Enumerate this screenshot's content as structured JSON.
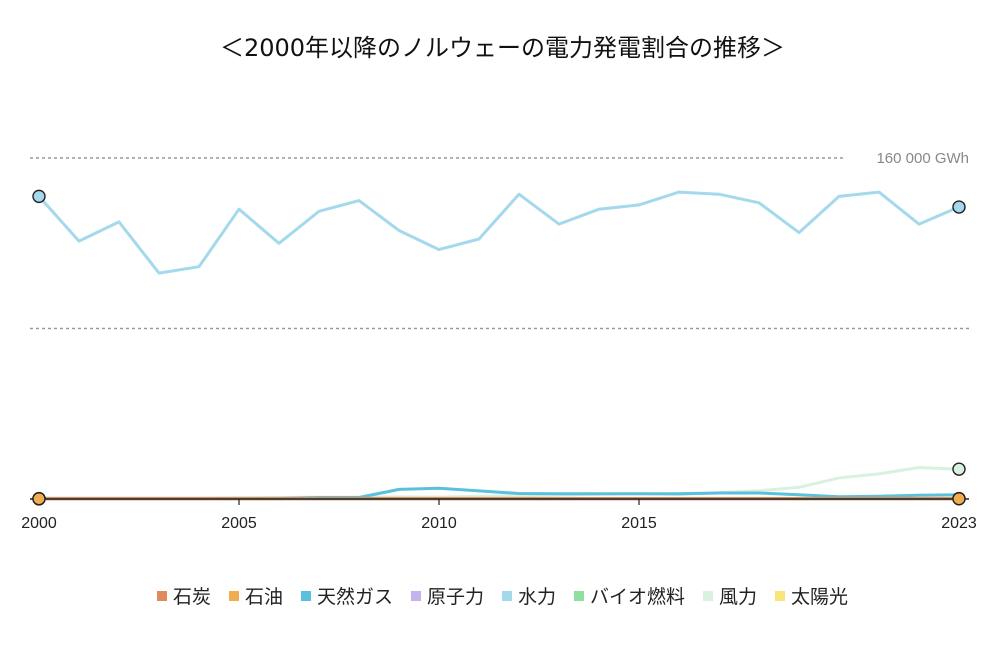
{
  "title": "＜2000年以降のノルウェーの電力発電割合の推移＞",
  "chart_data": {
    "type": "line",
    "x": [
      2000,
      2001,
      2002,
      2003,
      2004,
      2005,
      2006,
      2007,
      2008,
      2009,
      2010,
      2011,
      2012,
      2013,
      2014,
      2015,
      2016,
      2017,
      2018,
      2019,
      2020,
      2021,
      2022,
      2023
    ],
    "xticks": [
      "2000",
      "2005",
      "2010",
      "2015",
      "2023"
    ],
    "ylim": [
      0,
      160000
    ],
    "gridlines": [
      {
        "value": 160000,
        "label": "160 000 GWh"
      },
      {
        "value": 80000,
        "label": ""
      }
    ],
    "series": [
      {
        "name": "石炭",
        "color": "#e0895c",
        "values": [
          200,
          200,
          200,
          200,
          200,
          200,
          200,
          200,
          200,
          200,
          200,
          200,
          200,
          200,
          200,
          200,
          200,
          200,
          200,
          200,
          200,
          200,
          200,
          200
        ]
      },
      {
        "name": "石油",
        "color": "#f0ad4e",
        "values": [
          100,
          100,
          100,
          100,
          100,
          100,
          100,
          100,
          100,
          100,
          100,
          100,
          100,
          100,
          100,
          100,
          100,
          100,
          100,
          100,
          100,
          100,
          100,
          100
        ]
      },
      {
        "name": "天然ガス",
        "color": "#5bc0de",
        "values": [
          300,
          300,
          300,
          300,
          300,
          300,
          300,
          700,
          700,
          4500,
          5000,
          3800,
          2600,
          2500,
          2500,
          2500,
          2500,
          2800,
          2800,
          2000,
          1100,
          1300,
          1800,
          2000
        ]
      },
      {
        "name": "原子力",
        "color": "#c5b3f0",
        "values": [
          0,
          0,
          0,
          0,
          0,
          0,
          0,
          0,
          0,
          0,
          0,
          0,
          0,
          0,
          0,
          0,
          0,
          0,
          0,
          0,
          0,
          0,
          0,
          0
        ]
      },
      {
        "name": "水力",
        "color": "#a4d9ec",
        "values": [
          142000,
          121000,
          130000,
          106000,
          109000,
          136000,
          120000,
          135000,
          140000,
          126000,
          117000,
          122000,
          143000,
          129000,
          136000,
          138000,
          144000,
          143000,
          139000,
          125000,
          142000,
          144000,
          129000,
          137000
        ]
      },
      {
        "name": "バイオ燃料",
        "color": "#8ee0a0",
        "values": [
          300,
          300,
          300,
          300,
          300,
          300,
          300,
          300,
          300,
          300,
          300,
          300,
          300,
          300,
          300,
          300,
          300,
          300,
          300,
          300,
          300,
          300,
          300,
          300
        ]
      },
      {
        "name": "風力",
        "color": "#d8f1e0",
        "values": [
          30,
          30,
          100,
          200,
          250,
          500,
          700,
          900,
          900,
          1000,
          900,
          1300,
          1600,
          1900,
          2200,
          2500,
          2100,
          2900,
          3900,
          5500,
          9900,
          11800,
          14800,
          14000
        ]
      },
      {
        "name": "太陽光",
        "color": "#f7e57a",
        "values": [
          0,
          0,
          0,
          0,
          0,
          0,
          0,
          0,
          0,
          0,
          0,
          0,
          0,
          0,
          0,
          0,
          0,
          0,
          0,
          0,
          100,
          150,
          200,
          300
        ]
      }
    ]
  }
}
